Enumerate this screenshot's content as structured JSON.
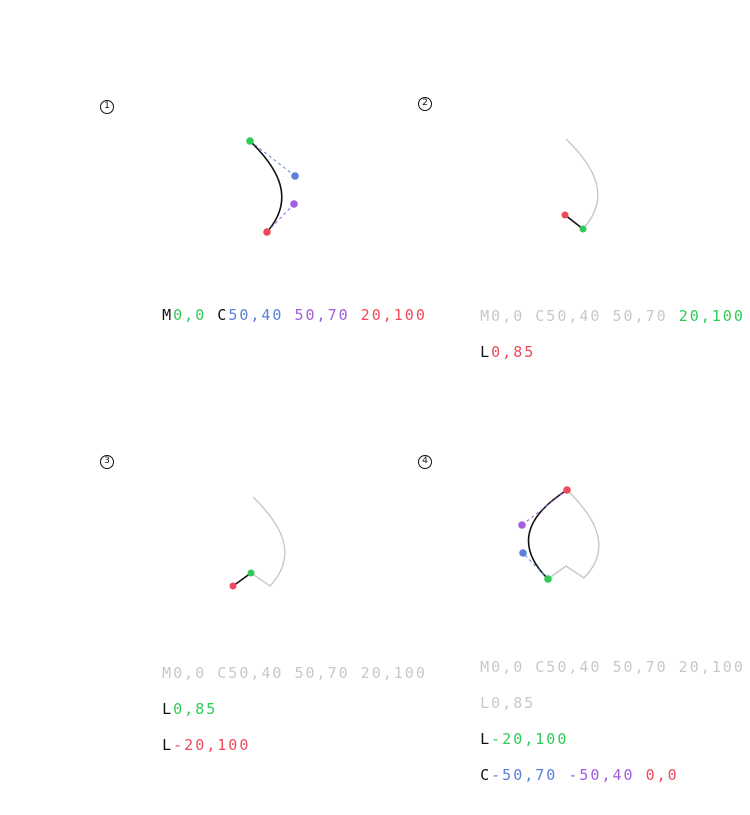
{
  "colors": {
    "start": "#2ecc55",
    "control1": "#5b7fdb",
    "control2": "#a25de0",
    "end": "#ef4a5c",
    "active_path": "#111111",
    "previous_path": "#c8c8c8"
  },
  "panels": [
    {
      "step": "1",
      "lines": [
        {
          "active": true,
          "tokens": [
            {
              "text": "M",
              "role": "command"
            },
            {
              "text": "0,0",
              "role": "start"
            },
            {
              "text": " C",
              "role": "command"
            },
            {
              "text": "50,40",
              "role": "control1"
            },
            {
              "text": " 50,70",
              "role": "control2"
            },
            {
              "text": " 20,100",
              "role": "end"
            }
          ]
        }
      ]
    },
    {
      "step": "2",
      "lines": [
        {
          "active": false,
          "tokens": [
            {
              "text": "M0,0 C50,40 50,70 ",
              "role": "previous"
            },
            {
              "text": "20,100",
              "role": "start"
            }
          ]
        },
        {
          "active": true,
          "tokens": [
            {
              "text": "L",
              "role": "command"
            },
            {
              "text": "0,85",
              "role": "end"
            }
          ]
        }
      ]
    },
    {
      "step": "3",
      "lines": [
        {
          "active": false,
          "tokens": [
            {
              "text": "M0,0 C50,40 50,70 20,100",
              "role": "previous"
            }
          ]
        },
        {
          "active": false,
          "tokens": [
            {
              "text": "L",
              "role": "command"
            },
            {
              "text": "0,85",
              "role": "start"
            }
          ]
        },
        {
          "active": true,
          "tokens": [
            {
              "text": "L",
              "role": "command"
            },
            {
              "text": "-20,100",
              "role": "end"
            }
          ]
        }
      ]
    },
    {
      "step": "4",
      "lines": [
        {
          "active": false,
          "tokens": [
            {
              "text": "M0,0 C50,40 50,70 20,100",
              "role": "previous"
            }
          ]
        },
        {
          "active": false,
          "tokens": [
            {
              "text": "L0,85",
              "role": "previous"
            }
          ]
        },
        {
          "active": false,
          "tokens": [
            {
              "text": "L",
              "role": "command"
            },
            {
              "text": "-20,100",
              "role": "start"
            }
          ]
        },
        {
          "active": true,
          "tokens": [
            {
              "text": "C",
              "role": "command"
            },
            {
              "text": "-50,70",
              "role": "control1"
            },
            {
              "text": " -50,40",
              "role": "control2"
            },
            {
              "text": " 0,0",
              "role": "end"
            }
          ]
        }
      ]
    }
  ]
}
